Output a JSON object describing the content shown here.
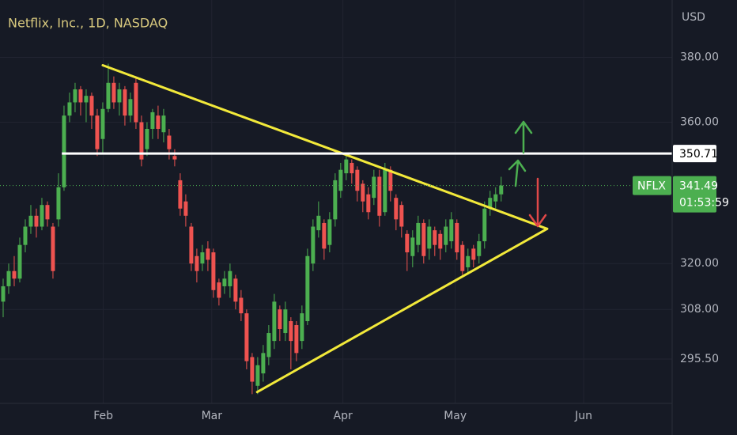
{
  "chart_data": {
    "type": "candlestick",
    "title": "Netflix, Inc., 1D, NASDAQ",
    "y_axis_label": "USD",
    "symbol": "NFLX",
    "countdown": "01:53:59",
    "log_scale": true,
    "grid": true,
    "up_color": "#4caf50",
    "down_color": "#ef5350",
    "categories": [
      null,
      null,
      null,
      null,
      null,
      null,
      null,
      null,
      null,
      null,
      null,
      null,
      null,
      null,
      null,
      null,
      null,
      null,
      null,
      null,
      null,
      null,
      null,
      null,
      null,
      null,
      null,
      null,
      null,
      null,
      null,
      null,
      null,
      null,
      null,
      null,
      null,
      null,
      null,
      null,
      null,
      null,
      null,
      null,
      null,
      null,
      null,
      null,
      null,
      null,
      null,
      null,
      null,
      null,
      null,
      null,
      null,
      null,
      null,
      null,
      null,
      null,
      null,
      null,
      null,
      null,
      null,
      null,
      null,
      null,
      null,
      null,
      null,
      null,
      null,
      null,
      null,
      null,
      null,
      null,
      null,
      null,
      null,
      null,
      null,
      null,
      null,
      null,
      null,
      null,
      null
    ],
    "open": [
      310,
      314,
      318,
      316,
      325,
      330,
      333,
      330,
      336,
      330,
      332,
      341,
      362,
      366,
      370,
      366,
      368,
      362,
      355,
      364,
      372,
      366,
      370,
      362,
      372,
      360,
      352,
      358,
      362,
      357,
      356,
      350,
      343,
      337,
      330,
      322,
      320,
      324,
      323,
      315,
      314,
      314,
      316,
      311,
      307,
      296,
      289,
      292,
      296,
      300,
      308,
      302,
      305,
      304,
      300,
      305,
      320,
      329,
      331,
      325,
      332,
      340,
      345,
      348,
      346,
      342,
      339,
      338,
      344,
      334,
      346,
      338,
      336,
      328,
      322,
      325,
      331,
      324,
      329,
      328,
      325,
      326,
      331,
      325,
      319,
      324,
      322,
      326,
      335,
      337,
      339
    ],
    "close": [
      314,
      318,
      316,
      325,
      330,
      333,
      330,
      336,
      332,
      318,
      341,
      362,
      366,
      370,
      366,
      368,
      362,
      352,
      364,
      372,
      366,
      370,
      362,
      367,
      360,
      349,
      358,
      363,
      358,
      362,
      352,
      349,
      335,
      333,
      320,
      318,
      323,
      321,
      313,
      311,
      316,
      318,
      310,
      307,
      295,
      290,
      294,
      297,
      302,
      310,
      303,
      308,
      300,
      297,
      307,
      322,
      330,
      333,
      324,
      332,
      343,
      346,
      349,
      345,
      340,
      337,
      334,
      344,
      333,
      346,
      340,
      332,
      330,
      323,
      327,
      331,
      322,
      330,
      325,
      324,
      330,
      332,
      323,
      318,
      322,
      321,
      326,
      335,
      338,
      339,
      341.49
    ],
    "high": [
      316,
      320,
      322,
      327,
      332,
      336,
      335,
      338,
      337,
      331,
      345,
      365,
      369,
      372,
      371,
      370,
      369,
      364,
      366,
      378,
      374,
      372,
      371,
      369,
      374,
      362,
      360,
      364,
      365,
      364,
      358,
      352,
      345,
      339,
      331,
      324,
      325,
      326,
      324,
      316,
      318,
      320,
      317,
      313,
      308,
      297,
      296,
      299,
      304,
      312,
      309,
      310,
      306,
      305,
      309,
      324,
      332,
      337,
      332,
      334,
      345,
      348,
      350,
      349,
      347,
      343,
      341,
      346,
      346,
      348,
      347,
      339,
      337,
      329,
      329,
      333,
      332,
      332,
      330,
      329,
      332,
      334,
      332,
      326,
      324,
      325,
      328,
      337,
      340,
      341,
      344
    ],
    "low": [
      306,
      312,
      314,
      315,
      323,
      328,
      327,
      329,
      330,
      316,
      330,
      340,
      360,
      363,
      362,
      360,
      358,
      350,
      351,
      363,
      364,
      362,
      359,
      360,
      358,
      347,
      350,
      355,
      355,
      354,
      349,
      347,
      333,
      330,
      318,
      315,
      318,
      318,
      311,
      309,
      312,
      311,
      308,
      305,
      293,
      287,
      287,
      290,
      294,
      298,
      300,
      300,
      293,
      295,
      298,
      304,
      318,
      327,
      321,
      323,
      330,
      338,
      343,
      342,
      337,
      334,
      332,
      336,
      330,
      333,
      337,
      329,
      327,
      318,
      319,
      323,
      320,
      321,
      322,
      321,
      323,
      324,
      321,
      317,
      317,
      319,
      320,
      324,
      333,
      335,
      337
    ],
    "xlim": [
      -0.57,
      120.9
    ],
    "ylim": [
      284.8,
      398.6
    ],
    "xticks": [
      {
        "value": 18.1,
        "label": "Feb"
      },
      {
        "value": 37.7,
        "label": "Mar"
      },
      {
        "value": 61.4,
        "label": "Apr"
      },
      {
        "value": 81.7,
        "label": "May"
      },
      {
        "value": 104.9,
        "label": "Jun"
      }
    ],
    "yticks": [
      {
        "value": 380,
        "label": "380.00"
      },
      {
        "value": 360,
        "label": "360.00"
      },
      {
        "value": 320,
        "label": "320.00"
      },
      {
        "value": 308,
        "label": "308.00"
      },
      {
        "value": 295.5,
        "label": "295.50"
      }
    ],
    "horizontal_line": {
      "y": 350.71,
      "x_start": 10.6,
      "color": "#ffffff"
    },
    "trend_lines": [
      {
        "x": [
          18,
          98.3
        ],
        "y": [
          377.5,
          329.4
        ]
      },
      {
        "x": [
          45.9,
          98.3
        ],
        "y": [
          287.5,
          329.4
        ]
      }
    ],
    "trend_line_color": "#f2e93a"
  }
}
